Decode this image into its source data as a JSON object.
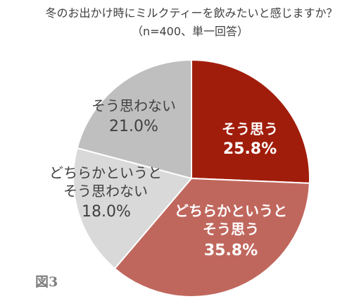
{
  "figure_label": "図3",
  "chart_data": {
    "type": "pie",
    "title": "冬のお出かけ時にミルクティーを飲みたいと感じますか？",
    "subtitle": "（n=400、単一回答）",
    "start_angle": "top",
    "direction": "clockwise",
    "slices": [
      {
        "label_lines": [
          "そう思う"
        ],
        "value": 25.8,
        "value_label": "25.8%",
        "color": "#A11D0B",
        "text_color": "#FFFFFF"
      },
      {
        "label_lines": [
          "どちらかというと",
          "そう思う"
        ],
        "value": 35.8,
        "value_label": "35.8%",
        "color": "#C0675D",
        "text_color": "#FFFFFF"
      },
      {
        "label_lines": [
          "どちらかというと",
          "そう思わない"
        ],
        "value": 18.0,
        "value_label": "18.0%",
        "color": "#D9D9D9",
        "text_color": "#404040"
      },
      {
        "label_lines": [
          "そう思わない"
        ],
        "value": 21.0,
        "value_label": "21.0%",
        "color": "#BFBFBF",
        "text_color": "#404040"
      }
    ]
  }
}
